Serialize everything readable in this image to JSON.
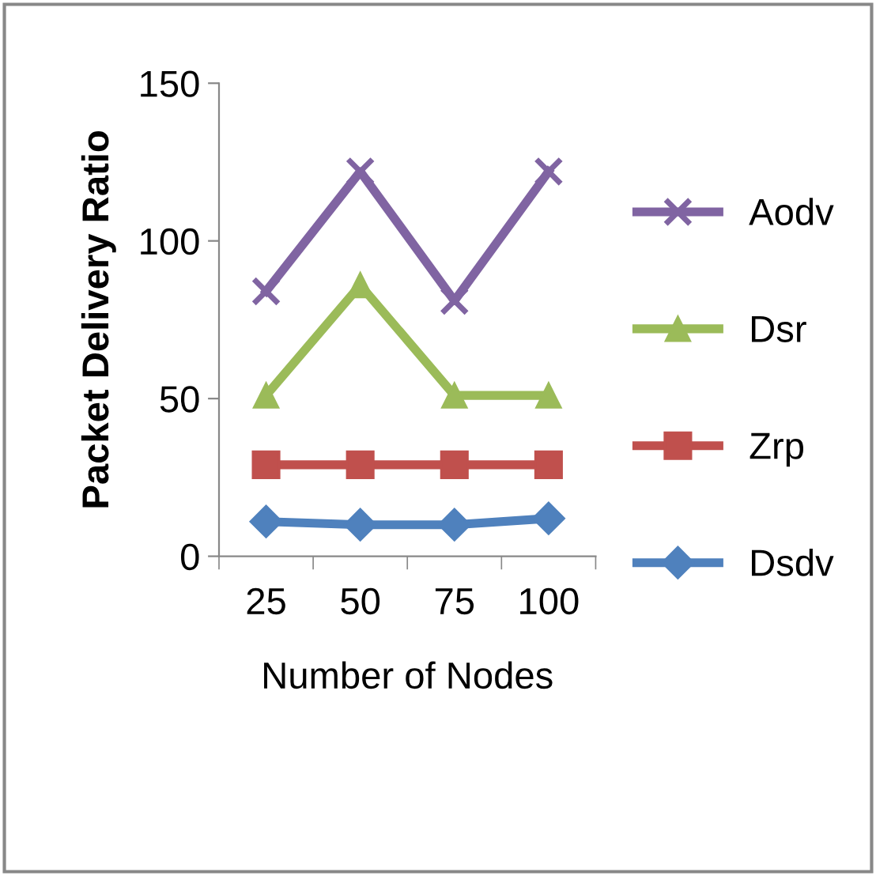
{
  "chart_data": {
    "type": "line",
    "xlabel": "Number of Nodes",
    "ylabel": "Packet Delivery Ratio",
    "categories": [
      "25",
      "50",
      "75",
      "100"
    ],
    "ylim": [
      0,
      150
    ],
    "yticks": [
      0,
      50,
      100,
      150
    ],
    "grid": false,
    "legend": "right",
    "series": [
      {
        "name": "Aodv",
        "color": "#8064a2",
        "marker": "cross",
        "values": [
          84,
          122,
          81,
          122
        ]
      },
      {
        "name": "Dsr",
        "color": "#9bbb59",
        "marker": "triangle",
        "values": [
          51,
          86,
          51,
          51
        ]
      },
      {
        "name": "Zrp",
        "color": "#c0504d",
        "marker": "square",
        "values": [
          29,
          29,
          29,
          29
        ]
      },
      {
        "name": "Dsdv",
        "color": "#4f81bd",
        "marker": "diamond",
        "values": [
          11,
          10,
          10,
          12
        ]
      }
    ]
  }
}
